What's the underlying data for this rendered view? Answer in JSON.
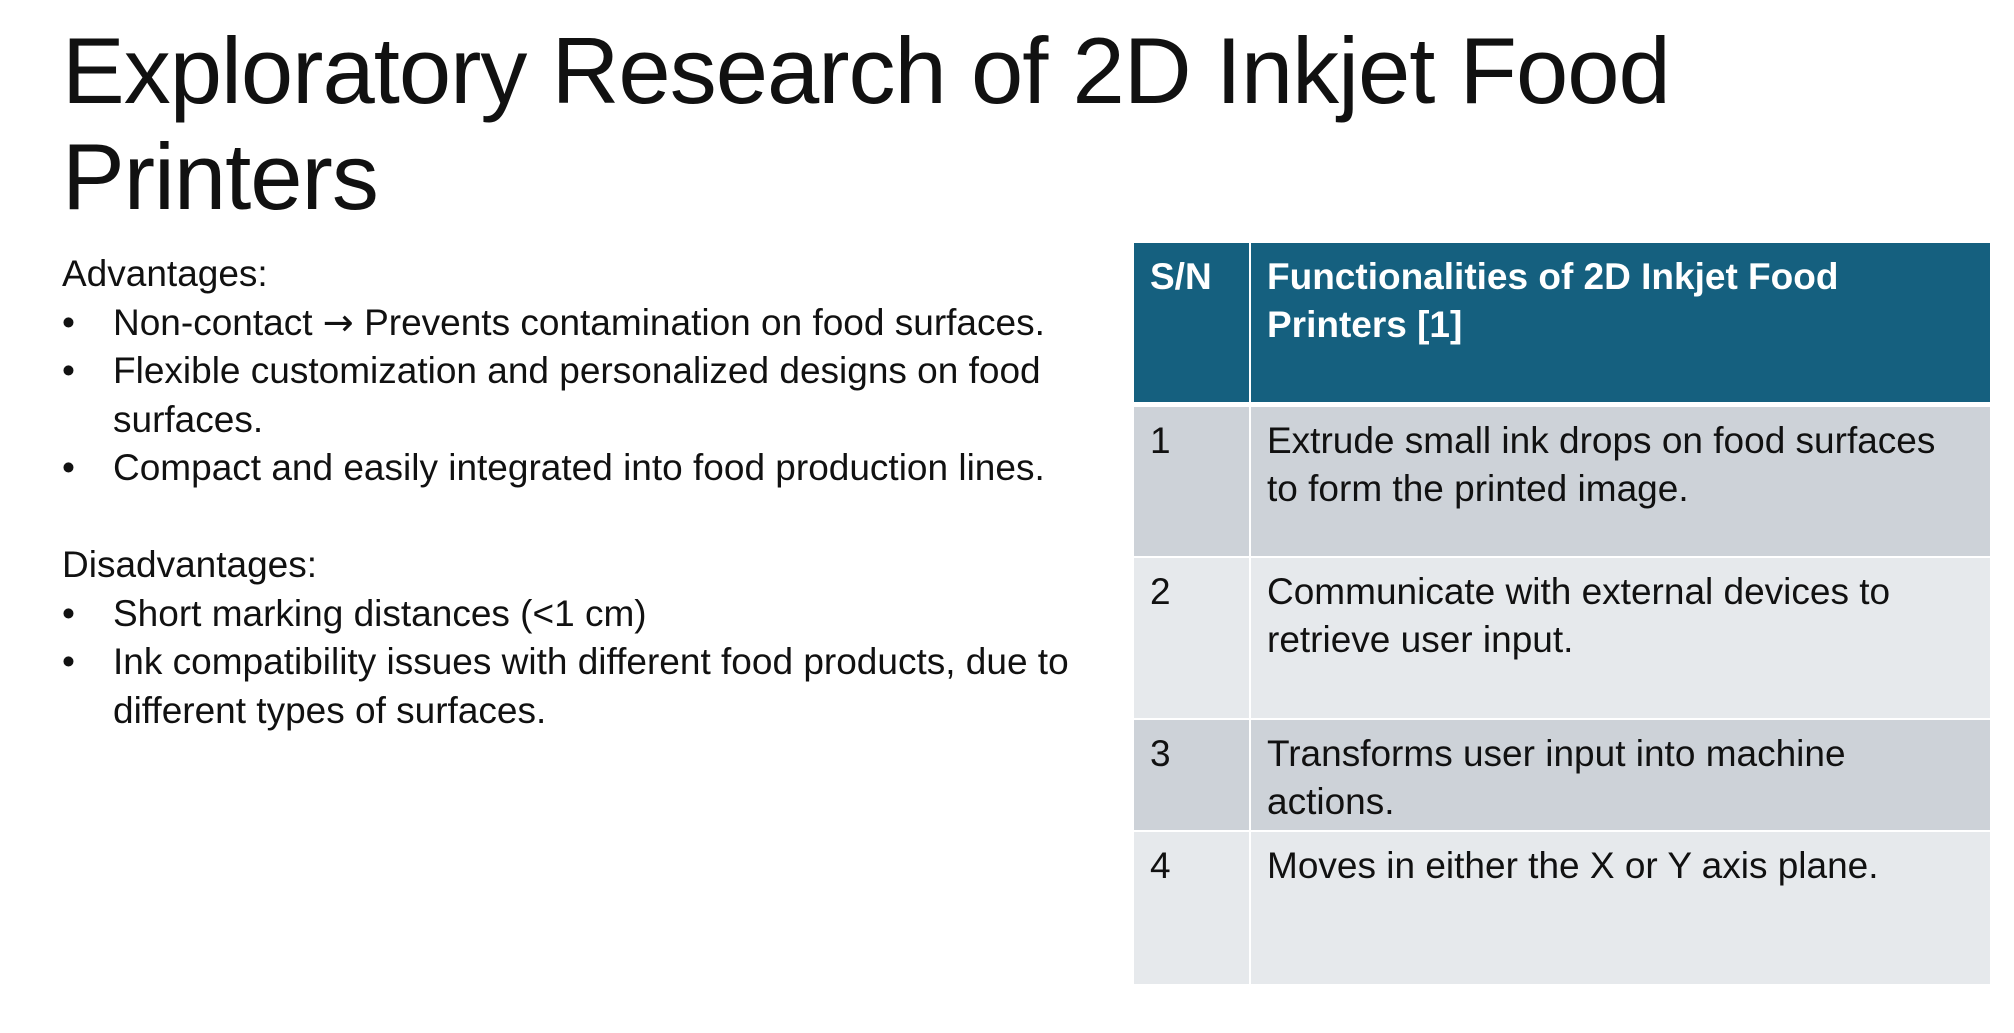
{
  "slide": {
    "title": "Exploratory Research of 2D Inkjet Food Printers"
  },
  "advantages": {
    "heading": "Advantages:",
    "bullet_char": "•",
    "items": [
      {
        "before_arrow": "Non-contact ",
        "arrow": "→",
        "after_arrow": " Prevents contamination on food surfaces."
      },
      {
        "text": "Flexible customization and personalized designs on food surfaces."
      },
      {
        "text": "Compact and easily integrated into food production lines."
      }
    ]
  },
  "disadvantages": {
    "heading": "Disadvantages:",
    "items": [
      {
        "text": "Short marking distances (<1 cm)"
      },
      {
        "text": "Ink compatibility issues with different food products, due to different types of surfaces."
      }
    ]
  },
  "table": {
    "header": {
      "sn": "S/N",
      "functionality": "Functionalities of 2D Inkjet Food Printers [1]"
    },
    "rows": [
      {
        "sn": "1",
        "text": "Extrude small ink drops on food surfaces to form the printed image."
      },
      {
        "sn": "2",
        "text": "Communicate with external devices to retrieve user input."
      },
      {
        "sn": "3",
        "text": "Transforms user input into machine actions."
      },
      {
        "sn": "4",
        "text": "Moves in either the X or Y axis plane."
      }
    ]
  },
  "colors": {
    "header_bg": "#15607f",
    "row_odd_bg": "#cdd2d8",
    "row_even_bg": "#e6e9ec"
  }
}
